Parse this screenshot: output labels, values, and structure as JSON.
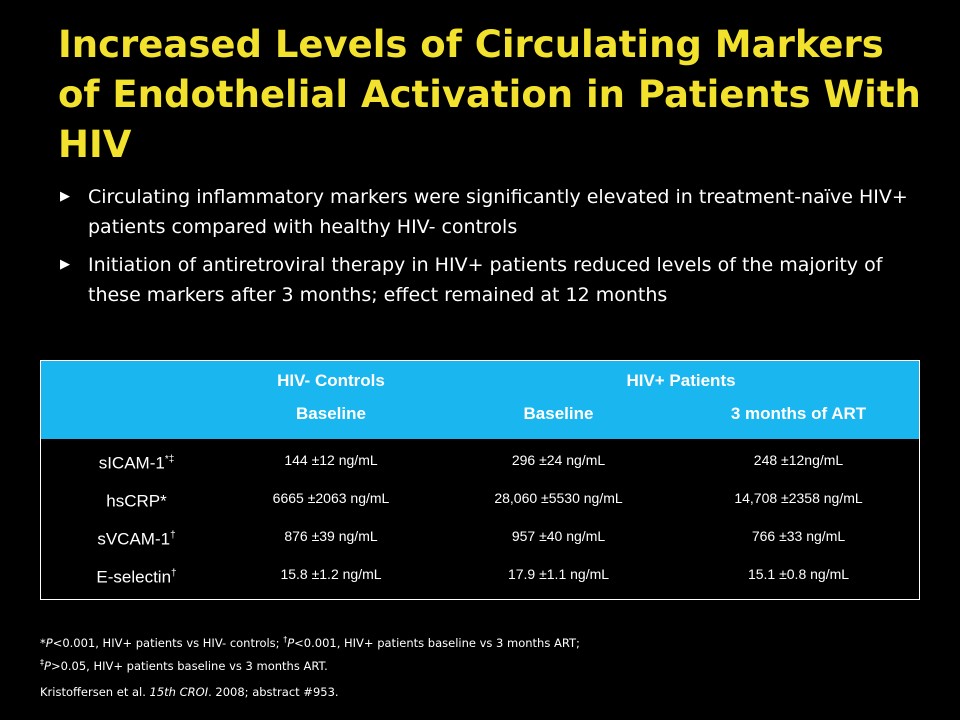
{
  "slide": {
    "title": "Increased Levels of Circulating Markers of Endothelial Activation in Patients With HIV",
    "bullets": [
      "Circulating  inflammatory markers  were significantly elevated in treatment-naïve HIV+ patients compared with healthy HIV- controls",
      "Initiation of antiretroviral therapy in HIV+ patients reduced levels of the majority of these markers after 3 months; effect  remained at 12 months"
    ],
    "bullet_icon": "arrow-bullet-icon"
  },
  "table": {
    "header": {
      "controls_group": "HIV- Controls",
      "patients_group": "HIV+ Patients",
      "controls_baseline": "Baseline",
      "patients_baseline": "Baseline",
      "patients_3mo": "3 months of ART"
    },
    "rows": [
      {
        "marker": "sICAM-1",
        "marks": "*‡",
        "controls": "144 ±12 ng/mL",
        "baseline": "296 ±24 ng/mL",
        "art3": "248 ±12ng/mL"
      },
      {
        "marker": "hsCRP*",
        "marks": "",
        "controls": "6665 ±2063 ng/mL",
        "baseline": "28,060 ±5530 ng/mL",
        "art3": "14,708 ±2358 ng/mL"
      },
      {
        "marker": "sVCAM-1",
        "marks": "†",
        "controls": "876 ±39 ng/mL",
        "baseline": "957 ±40 ng/mL",
        "art3": "766 ±33 ng/mL"
      },
      {
        "marker": "E-selectin",
        "marks": "†",
        "controls": "15.8 ±1.2 ng/mL",
        "baseline": "17.9 ±1.1 ng/mL",
        "art3": "15.1 ±0.8 ng/mL"
      }
    ],
    "header_color": "#1ab6ef"
  },
  "footnotes": {
    "line1_a": "*",
    "line1_b": "P",
    "line1_c": "<0.001, HIV+ patients vs HIV- controls; ",
    "line1_d": "†",
    "line1_e": "P",
    "line1_f": "<0.001, HIV+ patients baseline vs 3 months ART;",
    "line2_a": "‡",
    "line2_b": "P",
    "line2_c": ">0.05, HIV+ patients baseline vs 3 months  ART.",
    "ref_a": "Kristoffersen et al. ",
    "ref_b": "15th CROI",
    "ref_c": ". 2008; abstract #953."
  }
}
